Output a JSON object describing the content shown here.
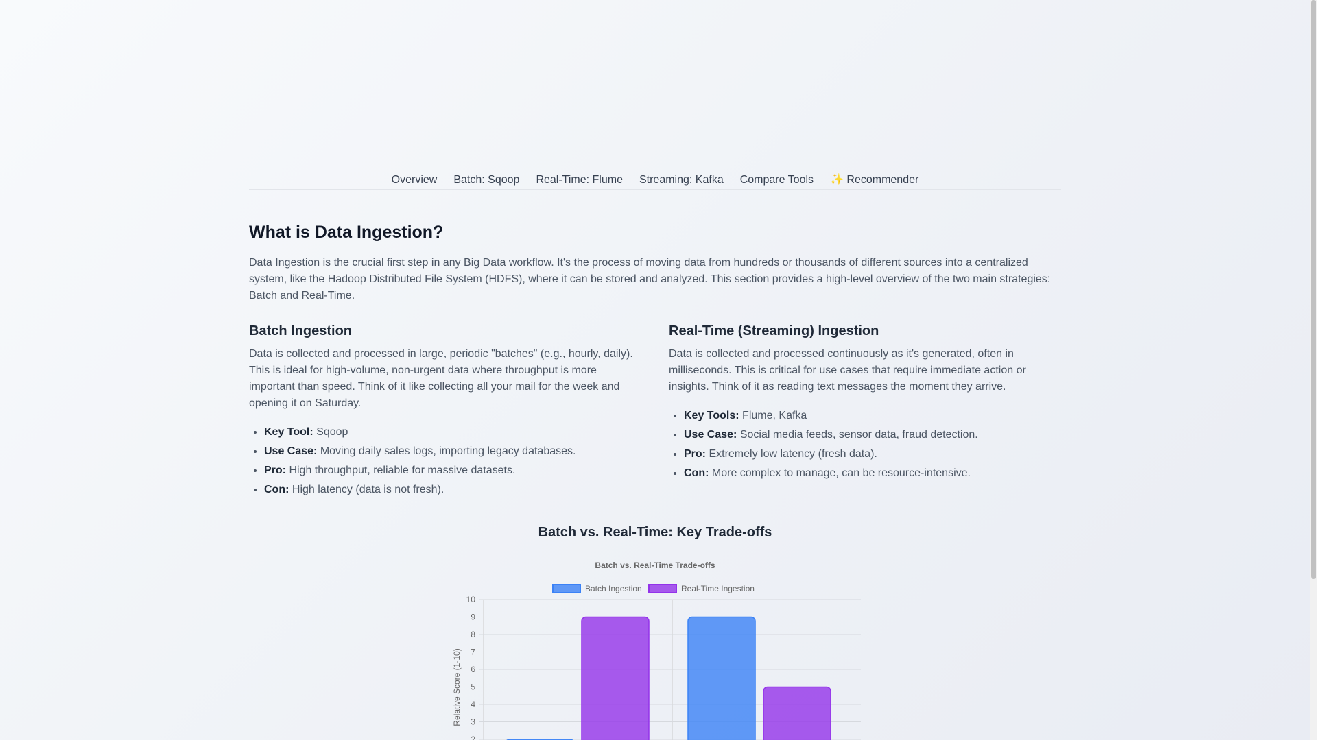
{
  "nav": [
    "Overview",
    "Batch: Sqoop",
    "Real-Time: Flume",
    "Streaming: Kafka",
    "Compare Tools",
    "✨ Recommender"
  ],
  "intro": {
    "title": "What is Data Ingestion?",
    "text": "Data Ingestion is the crucial first step in any Big Data workflow. It's the process of moving data from hundreds or thousands of different sources into a centralized system, like the Hadoop Distributed File System (HDFS), where it can be stored and analyzed. This section provides a high-level overview of the two main strategies: Batch and Real-Time."
  },
  "batch": {
    "title": "Batch Ingestion",
    "text": "Data is collected and processed in large, periodic \"batches\" (e.g., hourly, daily). This is ideal for high-volume, non-urgent data where throughput is more important than speed. Think of it like collecting all your mail for the week and opening it on Saturday.",
    "items": [
      {
        "k": "Key Tool:",
        "v": " Sqoop"
      },
      {
        "k": "Use Case:",
        "v": " Moving daily sales logs, importing legacy databases."
      },
      {
        "k": "Pro:",
        "v": " High throughput, reliable for massive datasets."
      },
      {
        "k": "Con:",
        "v": " High latency (data is not fresh)."
      }
    ]
  },
  "realtime": {
    "title": "Real-Time (Streaming) Ingestion",
    "text": "Data is collected and processed continuously as it's generated, often in milliseconds. This is critical for use cases that require immediate action or insights. Think of it as reading text messages the moment they arrive.",
    "items": [
      {
        "k": "Key Tools:",
        "v": " Flume, Kafka"
      },
      {
        "k": "Use Case:",
        "v": " Social media feeds, sensor data, fraud detection."
      },
      {
        "k": "Pro:",
        "v": " Extremely low latency (fresh data)."
      },
      {
        "k": "Con:",
        "v": " More complex to manage, can be resource-intensive."
      }
    ]
  },
  "chart_section_title": "Batch vs. Real-Time: Key Trade-offs",
  "chart_data": {
    "type": "bar",
    "title": "Batch vs. Real-Time Trade-offs",
    "ylabel": "Relative Score (1-10)",
    "ylim": [
      0,
      10
    ],
    "yticks": [
      2,
      3,
      4,
      5,
      6,
      7,
      8,
      9,
      10
    ],
    "grid": true,
    "legend": "top",
    "series": [
      {
        "name": "Batch Ingestion",
        "color": "#3b82f6",
        "values": [
          2,
          9
        ]
      },
      {
        "name": "Real-Time Ingestion",
        "color": "#9333ea",
        "values": [
          9,
          5
        ]
      }
    ]
  }
}
